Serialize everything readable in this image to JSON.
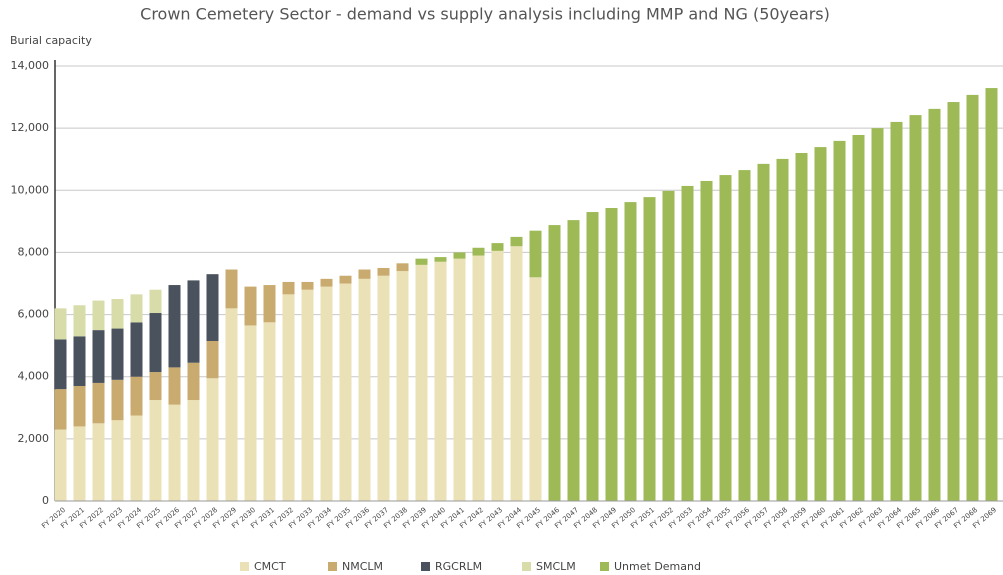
{
  "chart_data": {
    "type": "stacked_bar",
    "title": "Crown Cemetery Sector - demand vs supply analysis including MMP and NG (50years)",
    "y_label": "Burial capacity",
    "categories": [
      "FY 2020",
      "FY 2021",
      "FY 2022",
      "FY 2023",
      "FY 2024",
      "FY 2025",
      "FY 2026",
      "FY 2027",
      "FY 2028",
      "FY 2029",
      "FY 2030",
      "FY 2031",
      "FY 2032",
      "FY 2033",
      "FY 2034",
      "FY 2035",
      "FY 2036",
      "FY 2037",
      "FY 2038",
      "FY 2039",
      "FY 2040",
      "FY 2041",
      "FY 2042",
      "FY 2043",
      "FY 2044",
      "FY 2045",
      "FY 2046",
      "FY 2047",
      "FY 2048",
      "FY 2049",
      "FY 2050",
      "FY 2051",
      "FY 2052",
      "FY 2053",
      "FY 2054",
      "FY 2055",
      "FY 2056",
      "FY 2057",
      "FY 2058",
      "FY 2059",
      "FY 2060",
      "FY 2061",
      "FY 2062",
      "FY 2063",
      "FY 2064",
      "FY 2065",
      "FY 2066",
      "FY 2067",
      "FY 2068",
      "FY 2069"
    ],
    "series": [
      {
        "name": "CMCT",
        "color": "#ebe1b6",
        "values": [
          2300,
          2400,
          2500,
          2600,
          2750,
          3250,
          3100,
          3250,
          3950,
          6200,
          5650,
          5750,
          6650,
          6800,
          6900,
          7000,
          7150,
          7250,
          7400,
          7600,
          7700,
          7800,
          7900,
          8050,
          8200,
          7200,
          0,
          0,
          0,
          0,
          0,
          0,
          0,
          0,
          0,
          0,
          0,
          0,
          0,
          0,
          0,
          0,
          0,
          0,
          0,
          0,
          0,
          0,
          0,
          0
        ]
      },
      {
        "name": "NMCLM",
        "color": "#c9ab6f",
        "values": [
          1300,
          1300,
          1300,
          1300,
          1250,
          900,
          1200,
          1200,
          1200,
          1250,
          1250,
          1200,
          400,
          250,
          250,
          250,
          300,
          250,
          250,
          0,
          0,
          0,
          0,
          0,
          0,
          0,
          0,
          0,
          0,
          0,
          0,
          0,
          0,
          0,
          0,
          0,
          0,
          0,
          0,
          0,
          0,
          0,
          0,
          0,
          0,
          0,
          0,
          0,
          0,
          0
        ]
      },
      {
        "name": "RGCRLM",
        "color": "#4a525e",
        "values": [
          1600,
          1600,
          1700,
          1650,
          1750,
          1900,
          2650,
          2650,
          2150,
          0,
          0,
          0,
          0,
          0,
          0,
          0,
          0,
          0,
          0,
          0,
          0,
          0,
          0,
          0,
          0,
          0,
          0,
          0,
          0,
          0,
          0,
          0,
          0,
          0,
          0,
          0,
          0,
          0,
          0,
          0,
          0,
          0,
          0,
          0,
          0,
          0,
          0,
          0,
          0,
          0
        ]
      },
      {
        "name": "SMCLM",
        "color": "#d7dca8",
        "values": [
          1000,
          1000,
          950,
          950,
          900,
          750,
          0,
          0,
          0,
          0,
          0,
          0,
          0,
          0,
          0,
          0,
          0,
          0,
          0,
          0,
          0,
          0,
          0,
          0,
          0,
          0,
          0,
          0,
          0,
          0,
          0,
          0,
          0,
          0,
          0,
          0,
          0,
          0,
          0,
          0,
          0,
          0,
          0,
          0,
          0,
          0,
          0,
          0,
          0,
          0
        ]
      },
      {
        "name": "Unmet Demand",
        "color": "#9dba56",
        "values": [
          0,
          0,
          0,
          0,
          0,
          0,
          0,
          0,
          0,
          0,
          0,
          0,
          0,
          0,
          0,
          0,
          0,
          0,
          0,
          200,
          150,
          200,
          250,
          250,
          300,
          1500,
          8880,
          9040,
          9300,
          9430,
          9620,
          9780,
          9980,
          10140,
          10300,
          10490,
          10650,
          10850,
          11010,
          11200,
          11390,
          11590,
          11780,
          12000,
          12200,
          12420,
          12620,
          12840,
          13070,
          13290
        ]
      }
    ],
    "ylim": [
      0,
      14000
    ],
    "yticks": [
      0,
      {
        "value": 2000,
        "label": "2,000"
      },
      {
        "value": 4000,
        "label": "4,000"
      },
      {
        "value": 6000,
        "label": "6,000"
      },
      {
        "value": 8000,
        "label": "8,000"
      },
      {
        "value": 10000,
        "label": "10,000"
      },
      {
        "value": 12000,
        "label": "12,000"
      },
      {
        "value": 14000,
        "label": "14,000"
      }
    ],
    "grid": true,
    "legend": "bottom"
  }
}
